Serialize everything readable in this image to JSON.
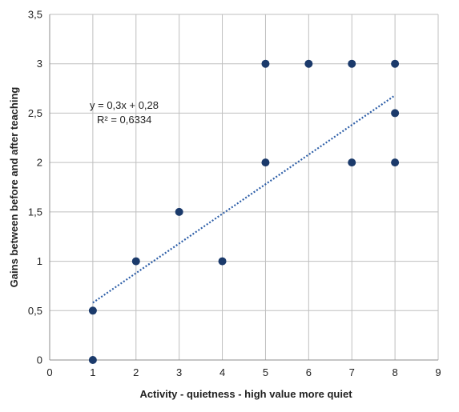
{
  "chart_data": {
    "type": "scatter",
    "title": "",
    "xlabel": "Activity - quietness - high value more quiet",
    "ylabel": "Gains between before and after teaching",
    "xlim": [
      0,
      9
    ],
    "ylim": [
      0,
      3.5
    ],
    "x_ticks": [
      "0",
      "1",
      "2",
      "3",
      "4",
      "5",
      "6",
      "7",
      "8",
      "9"
    ],
    "y_ticks": [
      "0",
      "0,5",
      "1",
      "1,5",
      "2",
      "2,5",
      "3",
      "3,5"
    ],
    "grid": true,
    "points": [
      {
        "x": 1,
        "y": 0
      },
      {
        "x": 1,
        "y": 0.5
      },
      {
        "x": 2,
        "y": 1
      },
      {
        "x": 3,
        "y": 1.5
      },
      {
        "x": 4,
        "y": 1
      },
      {
        "x": 5,
        "y": 2
      },
      {
        "x": 5,
        "y": 3
      },
      {
        "x": 6,
        "y": 3
      },
      {
        "x": 7,
        "y": 3
      },
      {
        "x": 7,
        "y": 2
      },
      {
        "x": 8,
        "y": 3
      },
      {
        "x": 8,
        "y": 2.5
      },
      {
        "x": 8,
        "y": 2
      }
    ],
    "trendline": {
      "type": "linear",
      "slope": 0.3,
      "intercept": 0.28,
      "x_start": 1,
      "x_end": 8,
      "equation": "y = 0,3x + 0,28",
      "r_squared": "R² = 0,6334"
    },
    "colors": {
      "marker": "#1b3a6b",
      "trendline": "#2e5fa8",
      "grid": "#bfbfbf",
      "axis": "#8c8c8c"
    }
  }
}
